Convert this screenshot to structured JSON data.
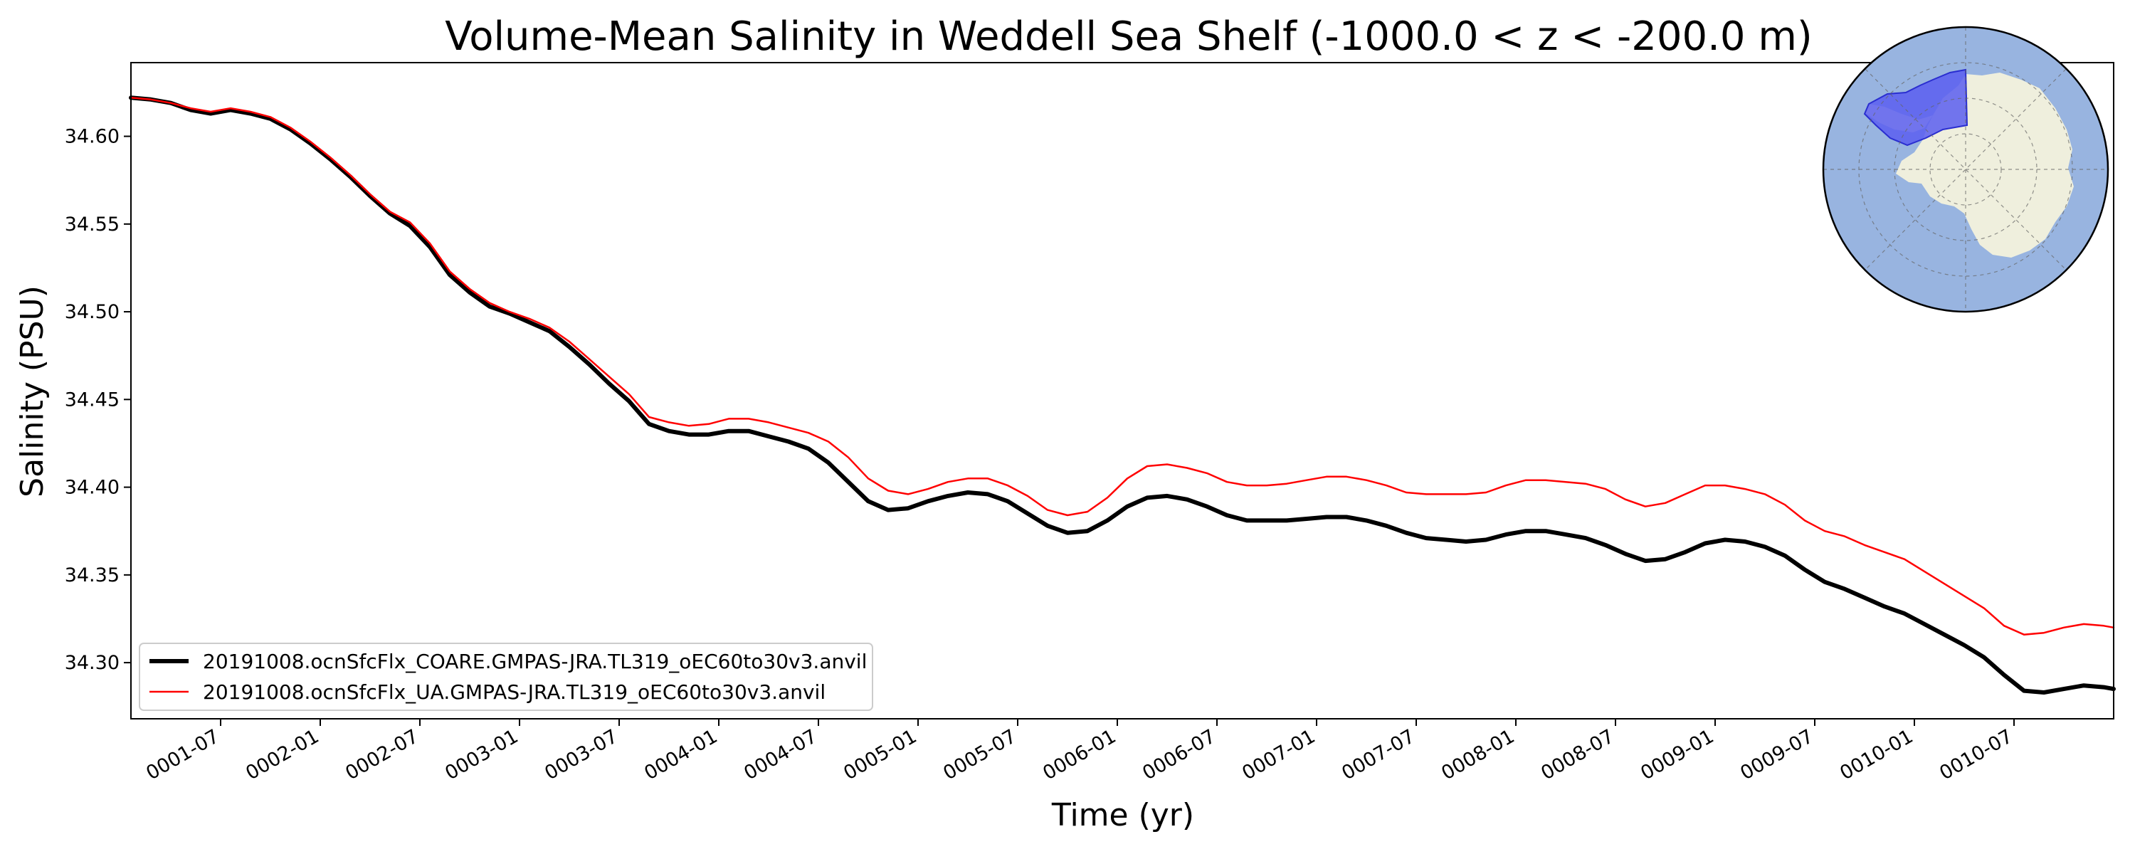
{
  "chart_data": {
    "type": "line",
    "title": "Volume-Mean Salinity in Weddell Sea Shelf (-1000.0 < z < -200.0 m)",
    "xlabel": "Time (yr)",
    "ylabel": "Salinity (PSU)",
    "xlim": [
      0.0,
      9.95
    ],
    "ylim": [
      34.268,
      34.642
    ],
    "x_ticks": [
      {
        "label": "0001-07",
        "value": 0.45
      },
      {
        "label": "0002-01",
        "value": 0.95
      },
      {
        "label": "0002-07",
        "value": 1.45
      },
      {
        "label": "0003-01",
        "value": 1.95
      },
      {
        "label": "0003-07",
        "value": 2.45
      },
      {
        "label": "0004-01",
        "value": 2.95
      },
      {
        "label": "0004-07",
        "value": 3.45
      },
      {
        "label": "0005-01",
        "value": 3.95
      },
      {
        "label": "0005-07",
        "value": 4.45
      },
      {
        "label": "0006-01",
        "value": 4.95
      },
      {
        "label": "0006-07",
        "value": 5.45
      },
      {
        "label": "0007-01",
        "value": 5.95
      },
      {
        "label": "0007-07",
        "value": 6.45
      },
      {
        "label": "0008-01",
        "value": 6.95
      },
      {
        "label": "0008-07",
        "value": 7.45
      },
      {
        "label": "0009-01",
        "value": 7.95
      },
      {
        "label": "0009-07",
        "value": 8.45
      },
      {
        "label": "0010-01",
        "value": 8.95
      },
      {
        "label": "0010-07",
        "value": 9.45
      }
    ],
    "y_ticks": [
      {
        "label": "34.30",
        "value": 34.3
      },
      {
        "label": "34.35",
        "value": 34.35
      },
      {
        "label": "34.40",
        "value": 34.4
      },
      {
        "label": "34.45",
        "value": 34.45
      },
      {
        "label": "34.50",
        "value": 34.5
      },
      {
        "label": "34.55",
        "value": 34.55
      },
      {
        "label": "34.60",
        "value": 34.6
      }
    ],
    "legend_position": "lower-left",
    "series": [
      {
        "name": "20191008.ocnSfcFlx_COARE.GMPAS-JRA.TL319_oEC60to30v3.anvil",
        "color": "#000000",
        "style": "thick",
        "x": [
          0.0,
          0.1,
          0.2,
          0.3,
          0.4,
          0.5,
          0.6,
          0.7,
          0.8,
          0.9,
          1.0,
          1.1,
          1.2,
          1.3,
          1.4,
          1.5,
          1.6,
          1.7,
          1.8,
          1.9,
          2.0,
          2.1,
          2.2,
          2.3,
          2.4,
          2.5,
          2.6,
          2.7,
          2.8,
          2.9,
          3.0,
          3.1,
          3.2,
          3.3,
          3.4,
          3.5,
          3.6,
          3.7,
          3.8,
          3.9,
          4.0,
          4.1,
          4.2,
          4.3,
          4.4,
          4.5,
          4.6,
          4.7,
          4.8,
          4.9,
          5.0,
          5.1,
          5.2,
          5.3,
          5.4,
          5.5,
          5.6,
          5.7,
          5.8,
          5.9,
          6.0,
          6.1,
          6.2,
          6.3,
          6.4,
          6.5,
          6.6,
          6.7,
          6.8,
          6.9,
          7.0,
          7.1,
          7.2,
          7.3,
          7.4,
          7.5,
          7.6,
          7.7,
          7.8,
          7.9,
          8.0,
          8.1,
          8.2,
          8.3,
          8.4,
          8.5,
          8.6,
          8.7,
          8.8,
          8.9,
          9.0,
          9.1,
          9.2,
          9.3,
          9.4,
          9.5,
          9.6,
          9.7,
          9.8,
          9.9,
          9.95
        ],
        "y": [
          34.622,
          34.621,
          34.619,
          34.615,
          34.613,
          34.615,
          34.613,
          34.61,
          34.604,
          34.596,
          34.587,
          34.577,
          34.566,
          34.556,
          34.549,
          34.537,
          34.521,
          34.511,
          34.503,
          34.499,
          34.494,
          34.489,
          34.48,
          34.47,
          34.459,
          34.449,
          34.436,
          34.432,
          34.43,
          34.43,
          34.432,
          34.432,
          34.429,
          34.426,
          34.422,
          34.414,
          34.403,
          34.392,
          34.387,
          34.388,
          34.392,
          34.395,
          34.397,
          34.396,
          34.392,
          34.385,
          34.378,
          34.374,
          34.375,
          34.381,
          34.389,
          34.394,
          34.395,
          34.393,
          34.389,
          34.384,
          34.381,
          34.381,
          34.381,
          34.382,
          34.383,
          34.383,
          34.381,
          34.378,
          34.374,
          34.371,
          34.37,
          34.369,
          34.37,
          34.373,
          34.375,
          34.375,
          34.373,
          34.371,
          34.367,
          34.362,
          34.358,
          34.359,
          34.363,
          34.368,
          34.37,
          34.369,
          34.366,
          34.361,
          34.353,
          34.346,
          34.342,
          34.337,
          34.332,
          34.328,
          34.322,
          34.316,
          34.31,
          34.303,
          34.293,
          34.284,
          34.283,
          34.285,
          34.287,
          34.286,
          34.285
        ]
      },
      {
        "name": "20191008.ocnSfcFlx_UA.GMPAS-JRA.TL319_oEC60to30v3.anvil",
        "color": "#ff0000",
        "style": "thin",
        "x": [
          0.0,
          0.1,
          0.2,
          0.3,
          0.4,
          0.5,
          0.6,
          0.7,
          0.8,
          0.9,
          1.0,
          1.1,
          1.2,
          1.3,
          1.4,
          1.5,
          1.6,
          1.7,
          1.8,
          1.9,
          2.0,
          2.1,
          2.2,
          2.3,
          2.4,
          2.5,
          2.6,
          2.7,
          2.8,
          2.9,
          3.0,
          3.1,
          3.2,
          3.3,
          3.4,
          3.5,
          3.6,
          3.7,
          3.8,
          3.9,
          4.0,
          4.1,
          4.2,
          4.3,
          4.4,
          4.5,
          4.6,
          4.7,
          4.8,
          4.9,
          5.0,
          5.1,
          5.2,
          5.3,
          5.4,
          5.5,
          5.6,
          5.7,
          5.8,
          5.9,
          6.0,
          6.1,
          6.2,
          6.3,
          6.4,
          6.5,
          6.6,
          6.7,
          6.8,
          6.9,
          7.0,
          7.1,
          7.2,
          7.3,
          7.4,
          7.5,
          7.6,
          7.7,
          7.8,
          7.9,
          8.0,
          8.1,
          8.2,
          8.3,
          8.4,
          8.5,
          8.6,
          8.7,
          8.8,
          8.9,
          9.0,
          9.1,
          9.2,
          9.3,
          9.4,
          9.5,
          9.6,
          9.7,
          9.8,
          9.9,
          9.95
        ],
        "y": [
          34.622,
          34.621,
          34.619,
          34.616,
          34.614,
          34.616,
          34.614,
          34.611,
          34.605,
          34.597,
          34.588,
          34.578,
          34.567,
          34.557,
          34.551,
          34.539,
          34.523,
          34.513,
          34.505,
          34.5,
          34.496,
          34.491,
          34.483,
          34.473,
          34.463,
          34.453,
          34.44,
          34.437,
          34.435,
          34.436,
          34.439,
          34.439,
          34.437,
          34.434,
          34.431,
          34.426,
          34.417,
          34.405,
          34.398,
          34.396,
          34.399,
          34.403,
          34.405,
          34.405,
          34.401,
          34.395,
          34.387,
          34.384,
          34.386,
          34.394,
          34.405,
          34.412,
          34.413,
          34.411,
          34.408,
          34.403,
          34.401,
          34.401,
          34.402,
          34.404,
          34.406,
          34.406,
          34.404,
          34.401,
          34.397,
          34.396,
          34.396,
          34.396,
          34.397,
          34.401,
          34.404,
          34.404,
          34.403,
          34.402,
          34.399,
          34.393,
          34.389,
          34.391,
          34.396,
          34.401,
          34.401,
          34.399,
          34.396,
          34.39,
          34.381,
          34.375,
          34.372,
          34.367,
          34.363,
          34.359,
          34.352,
          34.345,
          34.338,
          34.331,
          34.321,
          34.316,
          34.317,
          34.32,
          34.322,
          34.321,
          34.32
        ]
      }
    ]
  },
  "inset_map": {
    "caption": "Antarctica region map",
    "ocean_color": "#98b4e0",
    "land_color": "#efefdd",
    "region_color": "#5a5ef0"
  }
}
